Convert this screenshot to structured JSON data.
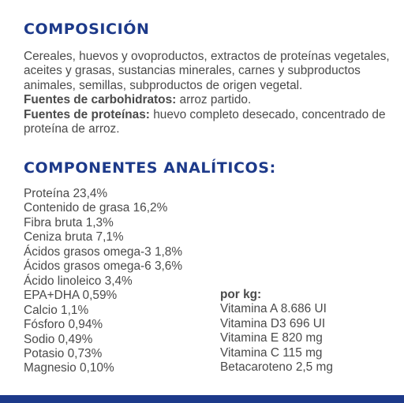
{
  "composition": {
    "title": "COMPOSICIÓN",
    "ingredients": "Cereales, huevos y ovoproductos, extractos de proteínas vegetales, aceites y grasas, sustancias minerales, carnes y subproductos animales, semillas, subproductos de origen vegetal.",
    "carb_label": "Fuentes de carbohidratos:",
    "carb_text": " arroz partido.",
    "protein_label": "Fuentes de proteínas:",
    "protein_text": " huevo completo desecado, concentrado de proteína de arroz."
  },
  "analytics": {
    "title": "COMPONENTES ANALÍTICOS:",
    "left": [
      "Proteína 23,4%",
      "Contenido de grasa 16,2%",
      "Fibra bruta 1,3%",
      "Ceniza bruta 7,1%",
      "Ácidos grasos omega-3 1,8%",
      "Ácidos grasos omega-6 3,6%",
      "Ácido linoleico 3,4%",
      "EPA+DHA 0,59%",
      "Calcio 1,1%",
      "Fósforo 0,94%",
      "Sodio 0,49%",
      "Potasio 0,73%",
      "Magnesio 0,10%"
    ],
    "per_kg_label": "por kg:",
    "right": [
      "Vitamina A 8.686 UI",
      "Vitamina D3 696 UI",
      "Vitamina E 820 mg",
      "Vitamina C 115 mg",
      "Betacaroteno 2,5 mg"
    ]
  },
  "colors": {
    "heading": "#1d3a8a",
    "text": "#4a4a4a",
    "bar": "#1d3a8a"
  }
}
